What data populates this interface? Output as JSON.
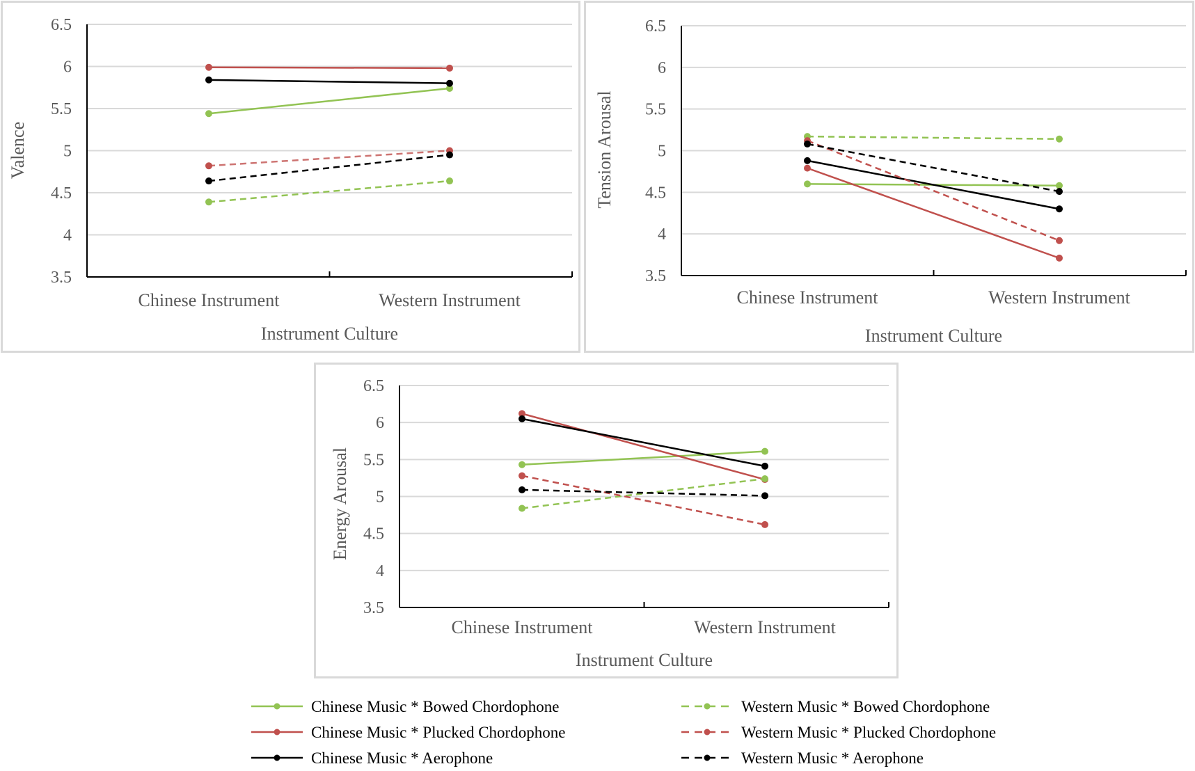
{
  "colors": {
    "bowed": "#92c353",
    "plucked": "#c0504d",
    "plucked_western": "#c0504d",
    "aerophone": "#000000",
    "grid": "#d9d9d9",
    "axis": "#000000",
    "text": "#595959"
  },
  "chart_data": [
    {
      "type": "line",
      "name": "valence",
      "xlabel": "Instrument Culture",
      "ylabel": "Valence",
      "categories": [
        "Chinese Instrument",
        "Western Instrument"
      ],
      "ylim": [
        3.5,
        6.5
      ],
      "yticks": [
        "3.5",
        "4",
        "4.5",
        "5",
        "5.5",
        "6",
        "6.5"
      ],
      "series": [
        {
          "name": "Chinese Music * Bowed Chordophone",
          "key": "bowed",
          "dashed": false,
          "values": [
            5.44,
            5.74
          ]
        },
        {
          "name": "Chinese  Music * Plucked Chordophone",
          "key": "plucked",
          "dashed": false,
          "values": [
            5.99,
            5.98
          ]
        },
        {
          "name": "Chinese  Music *  Aerophone",
          "key": "aerophone",
          "dashed": false,
          "values": [
            5.84,
            5.8
          ]
        },
        {
          "name": "Western Music * Bowed Chordophone",
          "key": "bowed",
          "dashed": true,
          "values": [
            4.39,
            4.64
          ]
        },
        {
          "name": "Western  Music * Plucked Chordophone",
          "key": "plucked_western",
          "dashed": true,
          "values": [
            4.82,
            5.0
          ]
        },
        {
          "name": "Western  Music *  Aerophone",
          "key": "aerophone",
          "dashed": true,
          "values": [
            4.64,
            4.95
          ]
        }
      ]
    },
    {
      "type": "line",
      "name": "tension",
      "xlabel": "Instrument Culture",
      "ylabel": "Tension Arousal",
      "categories": [
        "Chinese Instrument",
        "Western Instrument"
      ],
      "ylim": [
        3.5,
        6.5
      ],
      "yticks": [
        "3.5",
        "4",
        "4.5",
        "5",
        "5.5",
        "6",
        "6.5"
      ],
      "series": [
        {
          "name": "Chinese Music * Bowed Chordophone",
          "key": "bowed",
          "dashed": false,
          "values": [
            4.6,
            4.58
          ]
        },
        {
          "name": "Chinese  Music * Plucked Chordophone",
          "key": "plucked",
          "dashed": false,
          "values": [
            4.79,
            3.71
          ]
        },
        {
          "name": "Chinese  Music *  Aerophone",
          "key": "aerophone",
          "dashed": false,
          "values": [
            4.88,
            4.3
          ]
        },
        {
          "name": "Western Music * Bowed Chordophone",
          "key": "bowed",
          "dashed": true,
          "values": [
            5.17,
            5.14
          ]
        },
        {
          "name": "Western  Music * Plucked Chordophone",
          "key": "plucked_western",
          "dashed": true,
          "values": [
            5.12,
            3.92
          ]
        },
        {
          "name": "Western  Music *  Aerophone",
          "key": "aerophone",
          "dashed": true,
          "values": [
            5.08,
            4.51
          ]
        }
      ]
    },
    {
      "type": "line",
      "name": "energy",
      "xlabel": "Instrument Culture",
      "ylabel": "Energy Arousal",
      "categories": [
        "Chinese Instrument",
        "Western Instrument"
      ],
      "ylim": [
        3.5,
        6.5
      ],
      "yticks": [
        "3.5",
        "4",
        "4.5",
        "5",
        "5.5",
        "6",
        "6.5"
      ],
      "series": [
        {
          "name": "Chinese Music * Bowed Chordophone",
          "key": "bowed",
          "dashed": false,
          "values": [
            5.43,
            5.61
          ]
        },
        {
          "name": "Chinese  Music * Plucked Chordophone",
          "key": "plucked",
          "dashed": false,
          "values": [
            6.12,
            5.23
          ]
        },
        {
          "name": "Chinese  Music *  Aerophone",
          "key": "aerophone",
          "dashed": false,
          "values": [
            6.05,
            5.41
          ]
        },
        {
          "name": "Western Music * Bowed Chordophone",
          "key": "bowed",
          "dashed": true,
          "values": [
            4.84,
            5.24
          ]
        },
        {
          "name": "Western  Music * Plucked Chordophone",
          "key": "plucked_western",
          "dashed": true,
          "values": [
            5.28,
            4.62
          ]
        },
        {
          "name": "Western  Music *  Aerophone",
          "key": "aerophone",
          "dashed": true,
          "values": [
            5.09,
            5.01
          ]
        }
      ]
    }
  ],
  "legend": {
    "placement": "bottom",
    "items": [
      {
        "label": "Chinese Music * Bowed Chordophone",
        "key": "bowed",
        "dashed": false
      },
      {
        "label": "Western Music * Bowed Chordophone",
        "key": "bowed",
        "dashed": true
      },
      {
        "label": "Chinese  Music * Plucked Chordophone",
        "key": "plucked",
        "dashed": false
      },
      {
        "label": "Western  Music * Plucked Chordophone",
        "key": "plucked_western",
        "dashed": true
      },
      {
        "label": "Chinese  Music *  Aerophone",
        "key": "aerophone",
        "dashed": false
      },
      {
        "label": "Western  Music *  Aerophone",
        "key": "aerophone",
        "dashed": true
      }
    ]
  }
}
